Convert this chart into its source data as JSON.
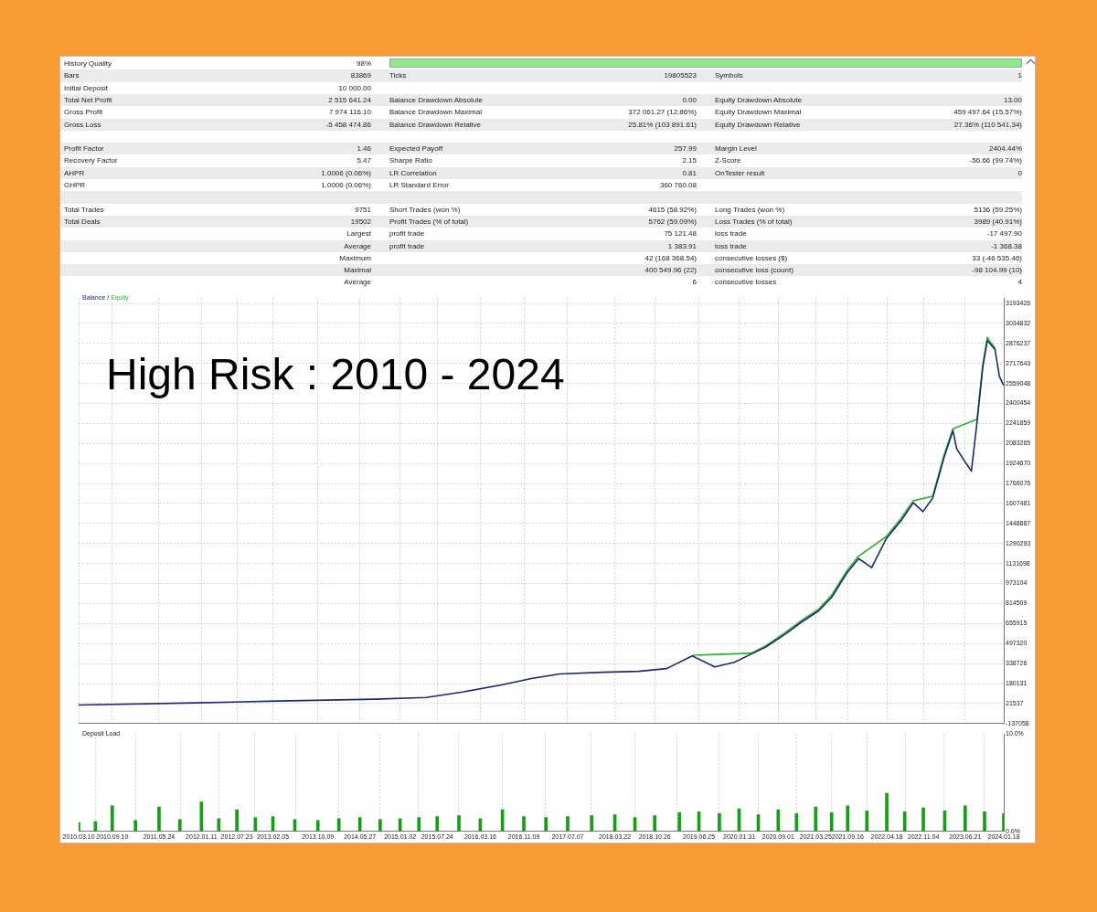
{
  "chart_data": [
    {
      "type": "other",
      "annotations": [
        "History Quality",
        "98%",
        null,
        null,
        null,
        null,
        "Bars",
        "83869",
        "Ticks",
        "19805523",
        "Symbols",
        "1",
        "Initial Deposit",
        "10 000.00",
        null,
        null,
        null,
        null,
        "Total Net Profit",
        "2 515 641.24",
        "Balance Drawdown Absolute",
        "0.00",
        "Equity Drawdown Absolute",
        "13.00",
        "Gross Profit",
        "7 974 116.10",
        "Balance Drawdown Maximal",
        "372 061.27 (12.86%)",
        "Equity Drawdown Maximal",
        "459 497.64 (15.57%)",
        "Gross Loss",
        "-5 458 474.86",
        "Balance Drawdown Relative",
        "25.81% (103 891.61)",
        "Equity Drawdown Relative",
        "27.36% (110 541.34)",
        null,
        null,
        null,
        null,
        null,
        null,
        "Profit Factor",
        "1.46",
        "Expected Payoff",
        "257.99",
        "Margin Level",
        "2404.44%",
        "Recovery Factor",
        "5.47",
        "Sharpe Ratio",
        "2.15",
        "Z-Score",
        "-56.66 (99.74%)",
        "AHPR",
        "1.0006 (0.06%)",
        "LR Correlation",
        "0.81",
        "OnTester result",
        "0",
        "GHPR",
        "1.0006 (0.06%)",
        "LR Standard Error",
        "360 760.08",
        null,
        null,
        null,
        null,
        null,
        null,
        null,
        null,
        "Total Trades",
        "9751",
        "Short Trades (won %)",
        "4615 (58.92%)",
        "Long Trades (won %)",
        "5136 (59.25%)",
        "Total Deals",
        "19502",
        "Profit Trades (% of total)",
        "5762 (59.09%)",
        "Loss Trades (% of total)",
        "3989 (40.91%)",
        null,
        "Largest",
        "profit trade",
        "75 121.48",
        "loss trade",
        "-17 497.90",
        null,
        "Average",
        "profit trade",
        "1 383.91",
        "loss trade",
        "-1 368.38",
        null,
        "Maximum",
        null,
        "42 (168 368.54)",
        "consecutive losses ($)",
        "33 (-46 535.46)",
        null,
        "Maximal",
        null,
        "400 549.96 (22)",
        "consecutive loss (count)",
        "-98 104.99 (10)",
        null,
        "Average",
        null,
        "6",
        "consecutive losses",
        "4"
      ]
    },
    {
      "type": "line",
      "title": "High Risk : 2010 - 2024",
      "legend": "top left",
      "annotations": [
        "/"
      ],
      "grid": true,
      "tick_labels": "y",
      "x": [
        "2010-03-10",
        "2011-12-15",
        "2013-03-10",
        "2014-08-15",
        "2015-05-25",
        "2015-12-10",
        "2016-07-10",
        "2016-12-20",
        "2017-05-25",
        "2018-01-20",
        "2018-07-30",
        "2018-12-30",
        "2019-05-20",
        "2019-09-20",
        "2020-01-05",
        "2020-04-05",
        "2020-06-25",
        "2020-10-15",
        "2021-01-10",
        "2021-04-10",
        "2021-06-20",
        "2021-09-12",
        "2021-11-15",
        "2022-01-25",
        "2022-04-15",
        "2022-07-05",
        "2022-09-10",
        "2022-11-02",
        "2022-12-25",
        "2023-02-25",
        "2023-04-15",
        "2023-05-05",
        "2023-06-21",
        "2023-07-25",
        "2023-08-25",
        "2023-09-25",
        "2023-10-20",
        "2023-11-10",
        "2023-12-01",
        "2023-12-25",
        "2024-01-18"
      ],
      "series": [
        {
          "name": "Balance",
          "color": "#1b2a6b",
          "values": [
            10000,
            27000,
            42000,
            56000,
            70000,
            113000,
            170000,
            220000,
            256000,
            270000,
            277000,
            299000,
            399000,
            313000,
            349000,
            413000,
            470000,
            578000,
            671000,
            756000,
            863000,
            1056000,
            1171000,
            1099000,
            1328000,
            1471000,
            1614000,
            1543000,
            1650000,
            1971000,
            2186000,
            2043000,
            1936000,
            1864000,
            2257000,
            2686000,
            2900000,
            2865000,
            2829000,
            2615000,
            2543000
          ]
        },
        {
          "name": "Equity",
          "color": "#2fb52f",
          "values": [
            null,
            null,
            null,
            null,
            null,
            null,
            null,
            null,
            null,
            null,
            null,
            null,
            405000,
            null,
            null,
            420000,
            480000,
            590000,
            685000,
            770000,
            880000,
            1075000,
            1190000,
            null,
            1345000,
            1490000,
            1630000,
            null,
            1665000,
            1990000,
            2200000,
            null,
            null,
            null,
            2275000,
            2705000,
            2925000,
            2880000,
            2840000,
            null,
            null
          ]
        }
      ],
      "xlim": [
        "2010-03-10",
        "2024-01-18"
      ],
      "xticks": [
        {
          "value": "2010-03-10",
          "label": null
        },
        {
          "value": "2010-09-10",
          "label": null
        },
        {
          "value": "2011-05-24",
          "label": null
        },
        {
          "value": "2012-01-11",
          "label": null
        },
        {
          "value": "2012-07-23",
          "label": null
        },
        {
          "value": "2013-02-05",
          "label": null
        },
        {
          "value": "2013-10-09",
          "label": null
        },
        {
          "value": "2014-05-27",
          "label": null
        },
        {
          "value": "2015-01-02",
          "label": null
        },
        {
          "value": "2015-07-24",
          "label": null
        },
        {
          "value": "2016-03-16",
          "label": null
        },
        {
          "value": "2016-11-09",
          "label": null
        },
        {
          "value": "2017-07-07",
          "label": null
        },
        {
          "value": "2018-03-22",
          "label": null
        },
        {
          "value": "2018-10-26",
          "label": null
        },
        {
          "value": "2019-06-25",
          "label": null
        },
        {
          "value": "2020-01-31",
          "label": null
        },
        {
          "value": "2020-09-01",
          "label": null
        },
        {
          "value": "2021-03-25",
          "label": null
        },
        {
          "value": "2021-09-16",
          "label": null
        },
        {
          "value": "2022-04-18",
          "label": null
        },
        {
          "value": "2022-11-04",
          "label": null
        },
        {
          "value": "2023-06-21",
          "label": null
        },
        {
          "value": "2024-01-18",
          "label": null
        }
      ],
      "ylim": [
        -137058,
        3236000
      ],
      "yticks": [
        -137058,
        21537,
        180131,
        338726,
        497320,
        655915,
        814509,
        973104,
        1131698,
        1290293,
        1448887,
        1607481,
        1766076,
        1924670,
        2083265,
        2241859,
        2400454,
        2559048,
        2717643,
        2876237,
        3034832,
        3193426
      ]
    },
    {
      "type": "bar",
      "title": "Deposit Load",
      "grid": "x",
      "color": "#14a014",
      "x": [
        "2010-03-10",
        "2010-06-10",
        "2010-09-10",
        "2011-01-15",
        "2011-05-24",
        "2011-09-15",
        "2012-01-11",
        "2012-04-15",
        "2012-07-23",
        "2012-11-01",
        "2013-02-05",
        "2013-06-05",
        "2013-10-09",
        "2014-02-01",
        "2014-05-27",
        "2014-09-15",
        "2015-01-02",
        "2015-04-15",
        "2015-07-24",
        "2015-11-20",
        "2016-03-16",
        "2016-07-15",
        "2016-11-09",
        "2017-03-10",
        "2017-07-07",
        "2017-11-15",
        "2018-03-22",
        "2018-07-10",
        "2018-10-26",
        "2019-03-10",
        "2019-06-25",
        "2019-10-15",
        "2020-01-31",
        "2020-05-15",
        "2020-09-01",
        "2020-12-10",
        "2021-03-25",
        "2021-06-20",
        "2021-09-16",
        "2021-12-30",
        "2022-04-18",
        "2022-07-25",
        "2022-11-04",
        "2023-03-01",
        "2023-06-21",
        "2023-10-05",
        "2024-01-18"
      ],
      "values": [
        0.9,
        1.0,
        2.6,
        1.1,
        2.5,
        1.2,
        3.0,
        1.3,
        2.2,
        1.4,
        1.5,
        1.2,
        1.1,
        1.3,
        1.4,
        1.2,
        1.3,
        1.4,
        1.5,
        1.6,
        1.3,
        2.2,
        1.5,
        1.4,
        1.5,
        1.6,
        1.7,
        1.4,
        1.6,
        1.9,
        2.0,
        1.8,
        2.3,
        1.7,
        2.2,
        1.8,
        2.5,
        1.9,
        2.6,
        2.1,
        3.9,
        2.0,
        2.4,
        2.1,
        2.6,
        2.0,
        1.8
      ],
      "xlim": [
        "2010-03-10",
        "2024-01-18"
      ],
      "xticks": [
        {
          "value": "2010-03-10",
          "label": "2010.03.10"
        },
        {
          "value": "2010-09-10",
          "label": "2010.09.10"
        },
        {
          "value": "2011-05-24",
          "label": "2011.05.24"
        },
        {
          "value": "2012-01-11",
          "label": "2012.01.11"
        },
        {
          "value": "2012-07-23",
          "label": "2012.07.23"
        },
        {
          "value": "2013-02-05",
          "label": "2013.02.05"
        },
        {
          "value": "2013-10-09",
          "label": "2013.10.09"
        },
        {
          "value": "2014-05-27",
          "label": "2014.05.27"
        },
        {
          "value": "2015-01-02",
          "label": "2015.01.02"
        },
        {
          "value": "2015-07-24",
          "label": "2015.07.24"
        },
        {
          "value": "2016-03-16",
          "label": "2016.03.16"
        },
        {
          "value": "2016-11-09",
          "label": "2016.11.09"
        },
        {
          "value": "2017-07-07",
          "label": "2017.07.07"
        },
        {
          "value": "2018-03-22",
          "label": "2018.03.22"
        },
        {
          "value": "2018-10-26",
          "label": "2018.10.26"
        },
        {
          "value": "2019-06-25",
          "label": "2019.06.25"
        },
        {
          "value": "2020-01-31",
          "label": "2020.01.31"
        },
        {
          "value": "2020-09-01",
          "label": "2020.09.01"
        },
        {
          "value": "2021-03-25",
          "label": "2021.03.25"
        },
        {
          "value": "2021-09-16",
          "label": "2021.09.16"
        },
        {
          "value": "2022-04-18",
          "label": "2022.04.18"
        },
        {
          "value": "2022-11-04",
          "label": "2022.11.04"
        },
        {
          "value": "2023-06-21",
          "label": "2023.06.21"
        },
        {
          "value": "2024-01-18",
          "label": "2024.01.18"
        }
      ],
      "ylim": [
        0,
        10
      ],
      "yticks": [
        {
          "value": 0,
          "label": "0.0%"
        },
        {
          "value": 10,
          "label": "10.0%"
        }
      ]
    }
  ]
}
